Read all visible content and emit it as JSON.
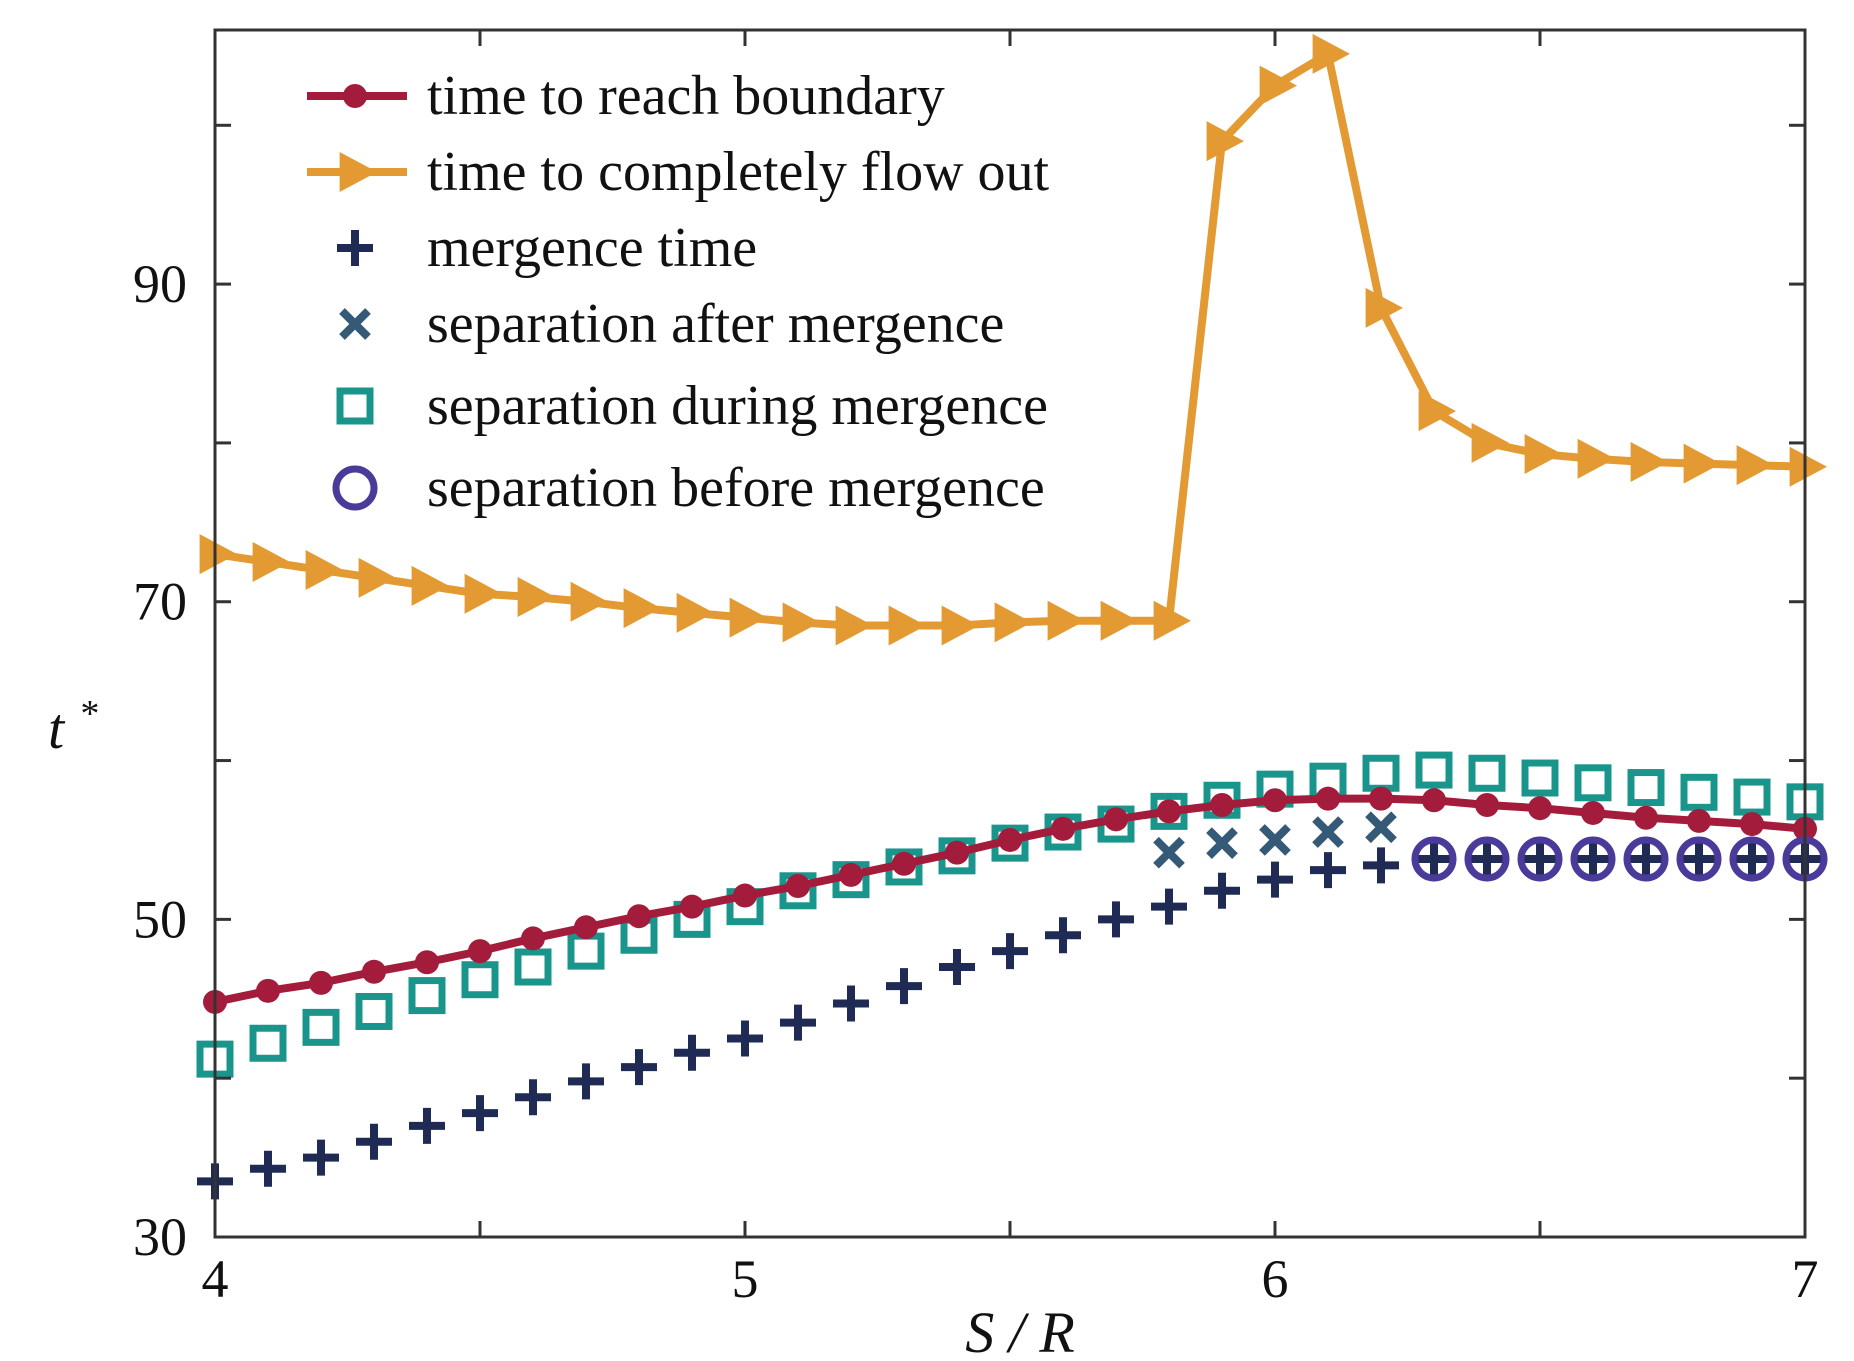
{
  "chart_data": {
    "type": "line",
    "title": "",
    "xlabel": "S / R",
    "ylabel_base": "t",
    "ylabel_sup": "*",
    "xlim": [
      4,
      7
    ],
    "ylim": [
      30,
      106
    ],
    "xticks": [
      4,
      4.5,
      5,
      5.5,
      6,
      6.5,
      7
    ],
    "xtick_labels": [
      "4",
      "",
      "5",
      "",
      "6",
      "",
      "7"
    ],
    "yticks": [
      30,
      40,
      50,
      60,
      70,
      80,
      90,
      100
    ],
    "ytick_labels": [
      "30",
      "",
      "50",
      "",
      "70",
      "",
      "90",
      ""
    ],
    "grid": false,
    "legend_position": "top-left",
    "x": [
      4.0,
      4.1,
      4.2,
      4.3,
      4.4,
      4.5,
      4.6,
      4.7,
      4.8,
      4.9,
      5.0,
      5.1,
      5.2,
      5.3,
      5.4,
      5.5,
      5.6,
      5.7,
      5.8,
      5.9,
      6.0,
      6.1,
      6.2,
      6.3,
      6.4,
      6.5,
      6.6,
      6.7,
      6.8,
      6.9,
      7.0
    ],
    "series": [
      {
        "name": "time to reach boundary",
        "style": "line-dot",
        "color": "#a31c3c",
        "x": [
          4.0,
          4.1,
          4.2,
          4.3,
          4.4,
          4.5,
          4.6,
          4.7,
          4.8,
          4.9,
          5.0,
          5.1,
          5.2,
          5.3,
          5.4,
          5.5,
          5.6,
          5.7,
          5.8,
          5.9,
          6.0,
          6.1,
          6.2,
          6.3,
          6.4,
          6.5,
          6.6,
          6.7,
          6.8,
          6.9,
          7.0
        ],
        "values": [
          44.8,
          45.5,
          46.0,
          46.7,
          47.3,
          48.0,
          48.8,
          49.5,
          50.2,
          50.8,
          51.5,
          52.1,
          52.8,
          53.5,
          54.2,
          55.0,
          55.7,
          56.3,
          56.8,
          57.2,
          57.5,
          57.6,
          57.6,
          57.5,
          57.2,
          57.0,
          56.7,
          56.4,
          56.2,
          56.0,
          55.7
        ]
      },
      {
        "name": "time to completely flow out",
        "style": "line-triangle",
        "color": "#e39a33",
        "x": [
          4.0,
          4.1,
          4.2,
          4.3,
          4.4,
          4.5,
          4.6,
          4.7,
          4.8,
          4.9,
          5.0,
          5.1,
          5.2,
          5.3,
          5.4,
          5.5,
          5.6,
          5.7,
          5.8,
          5.9,
          6.0,
          6.1,
          6.2,
          6.3,
          6.4,
          6.5,
          6.6,
          6.7,
          6.8,
          6.9,
          7.0
        ],
        "values": [
          73.0,
          72.5,
          72.0,
          71.5,
          71.0,
          70.5,
          70.3,
          70.0,
          69.6,
          69.3,
          69.0,
          68.7,
          68.5,
          68.5,
          68.5,
          68.7,
          68.8,
          68.8,
          68.8,
          99.0,
          102.5,
          104.5,
          88.5,
          82.0,
          80.0,
          79.3,
          79.0,
          78.8,
          78.7,
          78.6,
          78.5
        ]
      },
      {
        "name": "mergence time",
        "style": "plus",
        "color": "#1f2b55",
        "x": [
          4.0,
          4.1,
          4.2,
          4.3,
          4.4,
          4.5,
          4.6,
          4.7,
          4.8,
          4.9,
          5.0,
          5.1,
          5.2,
          5.3,
          5.4,
          5.5,
          5.6,
          5.7,
          5.8,
          5.9,
          6.0,
          6.1,
          6.2,
          6.3,
          6.4,
          6.5,
          6.6,
          6.7,
          6.8,
          6.9,
          7.0
        ],
        "values": [
          33.5,
          34.3,
          35.0,
          36.0,
          37.0,
          37.8,
          38.8,
          39.8,
          40.7,
          41.6,
          42.5,
          43.5,
          44.7,
          45.8,
          47.0,
          48.0,
          49.0,
          50.0,
          50.8,
          51.8,
          52.5,
          53.1,
          53.4,
          53.8,
          53.8,
          53.8,
          53.8,
          53.8,
          53.8,
          53.8,
          53.8
        ]
      },
      {
        "name": "separation after mergence",
        "style": "x",
        "color": "#355a78",
        "x": [
          5.8,
          5.9,
          6.0,
          6.1,
          6.2
        ],
        "values": [
          54.2,
          54.8,
          55.0,
          55.5,
          55.8
        ]
      },
      {
        "name": "separation during mergence",
        "style": "square",
        "color": "#1a958c",
        "x": [
          4.0,
          4.1,
          4.2,
          4.3,
          4.4,
          4.5,
          4.6,
          4.7,
          4.8,
          4.9,
          5.0,
          5.1,
          5.2,
          5.3,
          5.4,
          5.5,
          5.6,
          5.7,
          5.8,
          5.9,
          6.0,
          6.1,
          6.2,
          6.3,
          6.4,
          6.5,
          6.6,
          6.7,
          6.8,
          6.9,
          7.0
        ],
        "values": [
          41.2,
          42.2,
          43.2,
          44.2,
          45.2,
          46.2,
          47.0,
          48.0,
          49.0,
          50.0,
          50.8,
          51.8,
          52.5,
          53.3,
          54.0,
          54.8,
          55.5,
          56.0,
          56.8,
          57.5,
          58.2,
          58.7,
          59.2,
          59.4,
          59.2,
          58.9,
          58.6,
          58.3,
          58.0,
          57.7,
          57.4
        ]
      },
      {
        "name": "separation before mergence",
        "style": "circle",
        "color": "#4a3a9a",
        "x": [
          6.3,
          6.4,
          6.5,
          6.6,
          6.7,
          6.8,
          6.9,
          7.0
        ],
        "values": [
          53.8,
          53.8,
          53.8,
          53.8,
          53.8,
          53.8,
          53.8,
          53.8
        ]
      }
    ]
  }
}
